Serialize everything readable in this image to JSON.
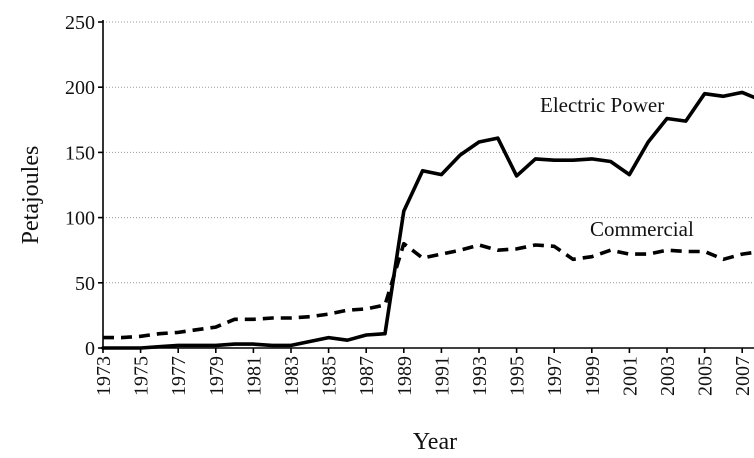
{
  "chart_data": {
    "type": "line",
    "xlabel": "Year",
    "ylabel": "Petajoules",
    "ylim": [
      0,
      250
    ],
    "xlim": [
      1973,
      2008
    ],
    "yticks": [
      0,
      50,
      100,
      150,
      200,
      250
    ],
    "xticks": [
      1973,
      1975,
      1977,
      1979,
      1981,
      1983,
      1985,
      1987,
      1989,
      1991,
      1993,
      1995,
      1997,
      1999,
      2001,
      2003,
      2005,
      2007
    ],
    "grid": true,
    "x": [
      1973,
      1974,
      1975,
      1976,
      1977,
      1978,
      1979,
      1980,
      1981,
      1982,
      1983,
      1984,
      1985,
      1986,
      1987,
      1988,
      1989,
      1990,
      1991,
      1992,
      1993,
      1994,
      1995,
      1996,
      1997,
      1998,
      1999,
      2000,
      2001,
      2002,
      2003,
      2004,
      2005,
      2006,
      2007,
      2008
    ],
    "series": [
      {
        "name": "Electric Power",
        "style": "solid",
        "color": "#000000",
        "values": [
          0,
          0,
          0,
          1,
          2,
          2,
          2,
          3,
          3,
          2,
          2,
          5,
          8,
          6,
          10,
          11,
          105,
          136,
          133,
          148,
          158,
          161,
          132,
          145,
          144,
          144,
          145,
          143,
          133,
          158,
          176,
          174,
          195,
          193,
          196,
          190
        ]
      },
      {
        "name": "Commercial",
        "style": "dashed",
        "color": "#000000",
        "values": [
          8,
          8,
          9,
          11,
          12,
          14,
          16,
          22,
          22,
          23,
          23,
          24,
          26,
          29,
          30,
          33,
          80,
          69,
          72,
          75,
          79,
          75,
          76,
          79,
          78,
          68,
          70,
          75,
          72,
          72,
          75,
          74,
          74,
          68,
          72,
          74
        ]
      }
    ]
  }
}
